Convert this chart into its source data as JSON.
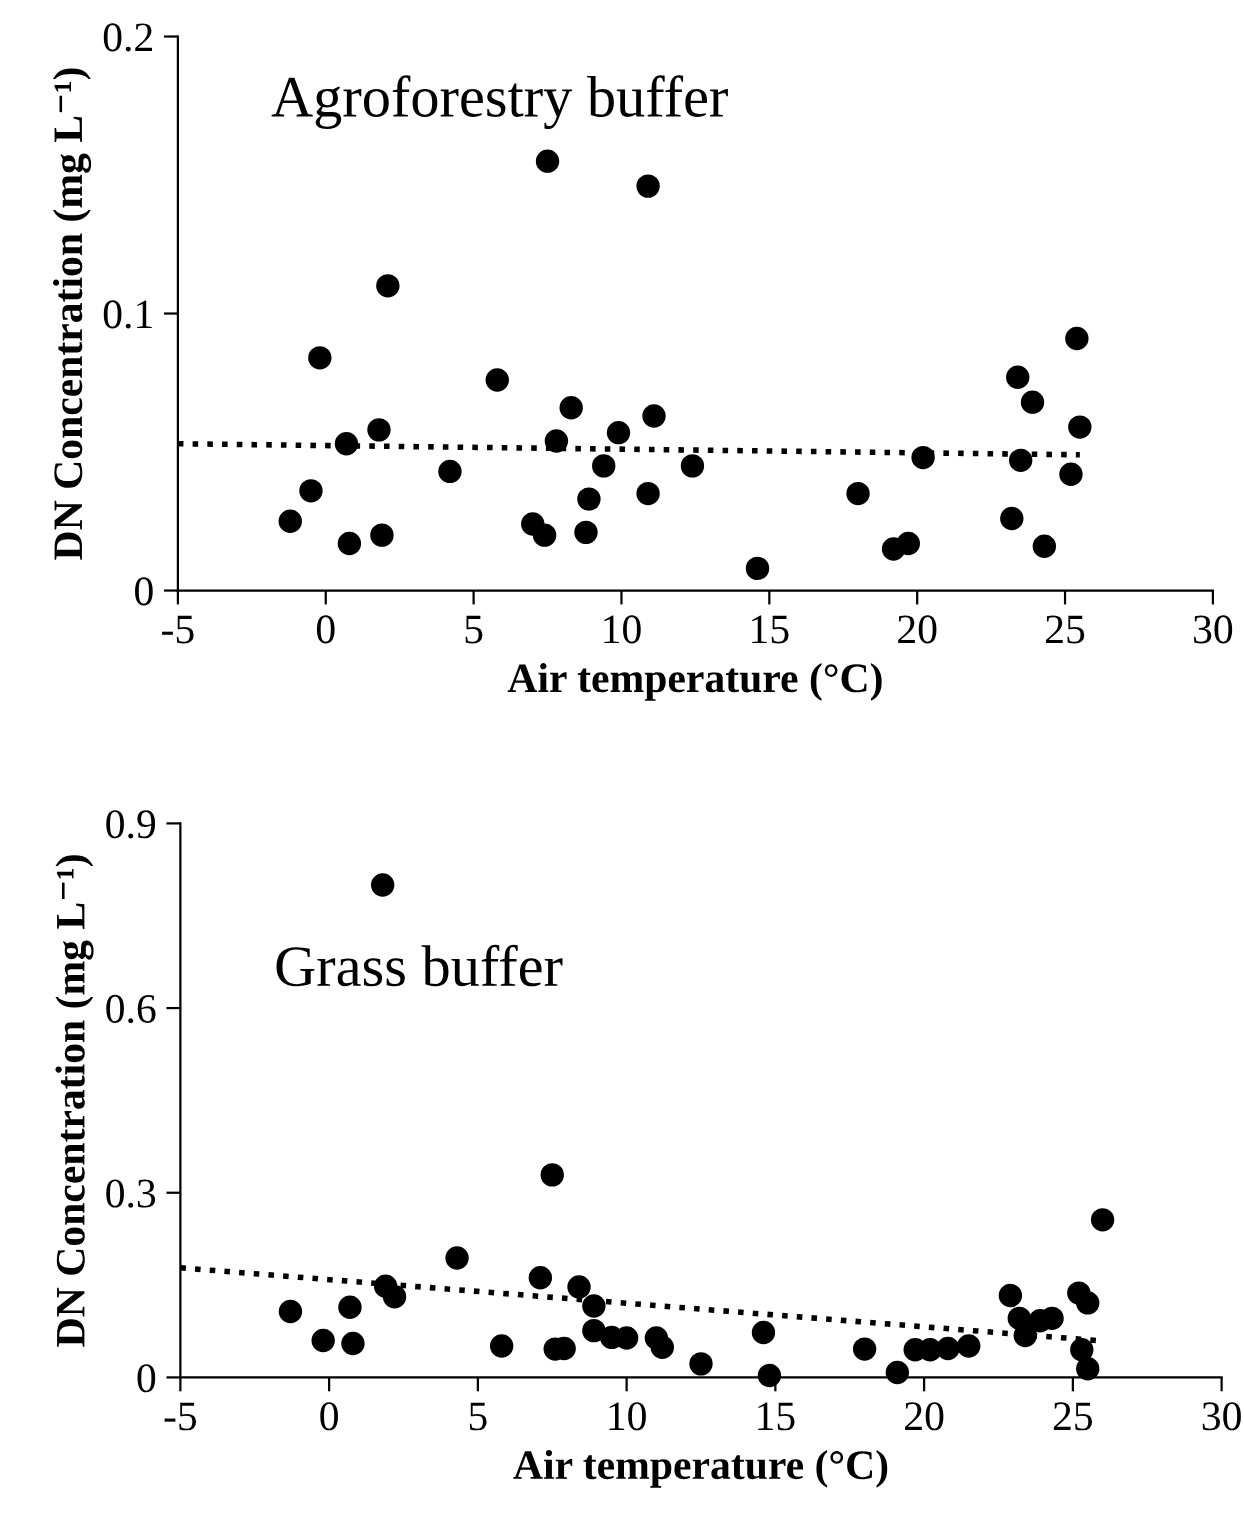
{
  "chart_data": [
    {
      "type": "scatter",
      "title": "Agroforestry buffer",
      "xlabel": "Air temperature (°C)",
      "ylabel": "DN Concentration (mg L⁻¹)",
      "xlim": [
        -5,
        30
      ],
      "xticks": [
        -5,
        0,
        5,
        10,
        15,
        20,
        25,
        30
      ],
      "ylim": [
        0,
        0.2
      ],
      "yticks": [
        0,
        0.1,
        0.2
      ],
      "series": [
        {
          "marker": "circle",
          "color": "#000000",
          "x": [
            -1.2,
            -0.5,
            -0.2,
            0.7,
            0.8,
            1.8,
            1.9,
            2.1,
            4.2,
            5.8,
            7.0,
            7.4,
            7.5,
            7.8,
            8.3,
            8.8,
            8.9,
            9.4,
            9.9,
            10.9,
            10.9,
            11.1,
            12.4,
            14.6,
            18.0,
            19.2,
            19.7,
            20.2,
            23.2,
            23.4,
            23.5,
            23.9,
            24.3,
            25.2,
            25.4,
            25.5
          ],
          "values": [
            0.025,
            0.036,
            0.084,
            0.053,
            0.017,
            0.058,
            0.02,
            0.11,
            0.043,
            0.076,
            0.024,
            0.02,
            0.155,
            0.054,
            0.066,
            0.021,
            0.033,
            0.045,
            0.057,
            0.146,
            0.035,
            0.063,
            0.045,
            0.008,
            0.035,
            0.015,
            0.017,
            0.048,
            0.026,
            0.077,
            0.047,
            0.068,
            0.016,
            0.042,
            0.091,
            0.059
          ]
        },
        {
          "type": "line",
          "color": "#000000",
          "line_style": "dotted",
          "x": [
            -5,
            25.5
          ],
          "values": [
            0.053,
            0.049
          ]
        }
      ]
    },
    {
      "type": "scatter",
      "title": "Grass buffer",
      "xlabel": "Air temperature (°C)",
      "ylabel": "DN Concentration (mg L⁻¹)",
      "xlim": [
        -5,
        30
      ],
      "xticks": [
        -5,
        0,
        5,
        10,
        15,
        20,
        25,
        30
      ],
      "ylim": [
        0,
        0.9
      ],
      "yticks": [
        0,
        0.3,
        0.6,
        0.9
      ],
      "series": [
        {
          "marker": "circle",
          "color": "#000000",
          "x": [
            -1.3,
            -0.2,
            0.7,
            0.8,
            1.8,
            1.9,
            2.2,
            4.3,
            5.8,
            7.1,
            7.5,
            7.6,
            7.9,
            8.4,
            8.9,
            8.9,
            9.5,
            10.0,
            11.0,
            11.2,
            12.5,
            14.6,
            14.8,
            18.0,
            19.1,
            19.7,
            20.2,
            20.8,
            21.5,
            22.9,
            23.2,
            23.4,
            23.9,
            24.3,
            25.2,
            25.5,
            25.3,
            25.5,
            26.0
          ],
          "values": [
            0.107,
            0.06,
            0.114,
            0.055,
            0.8,
            0.148,
            0.131,
            0.194,
            0.051,
            0.162,
            0.329,
            0.046,
            0.047,
            0.147,
            0.116,
            0.076,
            0.065,
            0.064,
            0.064,
            0.049,
            0.022,
            0.073,
            0.003,
            0.046,
            0.008,
            0.045,
            0.045,
            0.047,
            0.051,
            0.133,
            0.096,
            0.068,
            0.092,
            0.096,
            0.137,
            0.121,
            0.045,
            0.014,
            0.256
          ]
        },
        {
          "type": "line",
          "color": "#000000",
          "line_style": "dotted",
          "x": [
            -5,
            25.8
          ],
          "values": [
            0.178,
            0.06
          ]
        }
      ]
    }
  ]
}
